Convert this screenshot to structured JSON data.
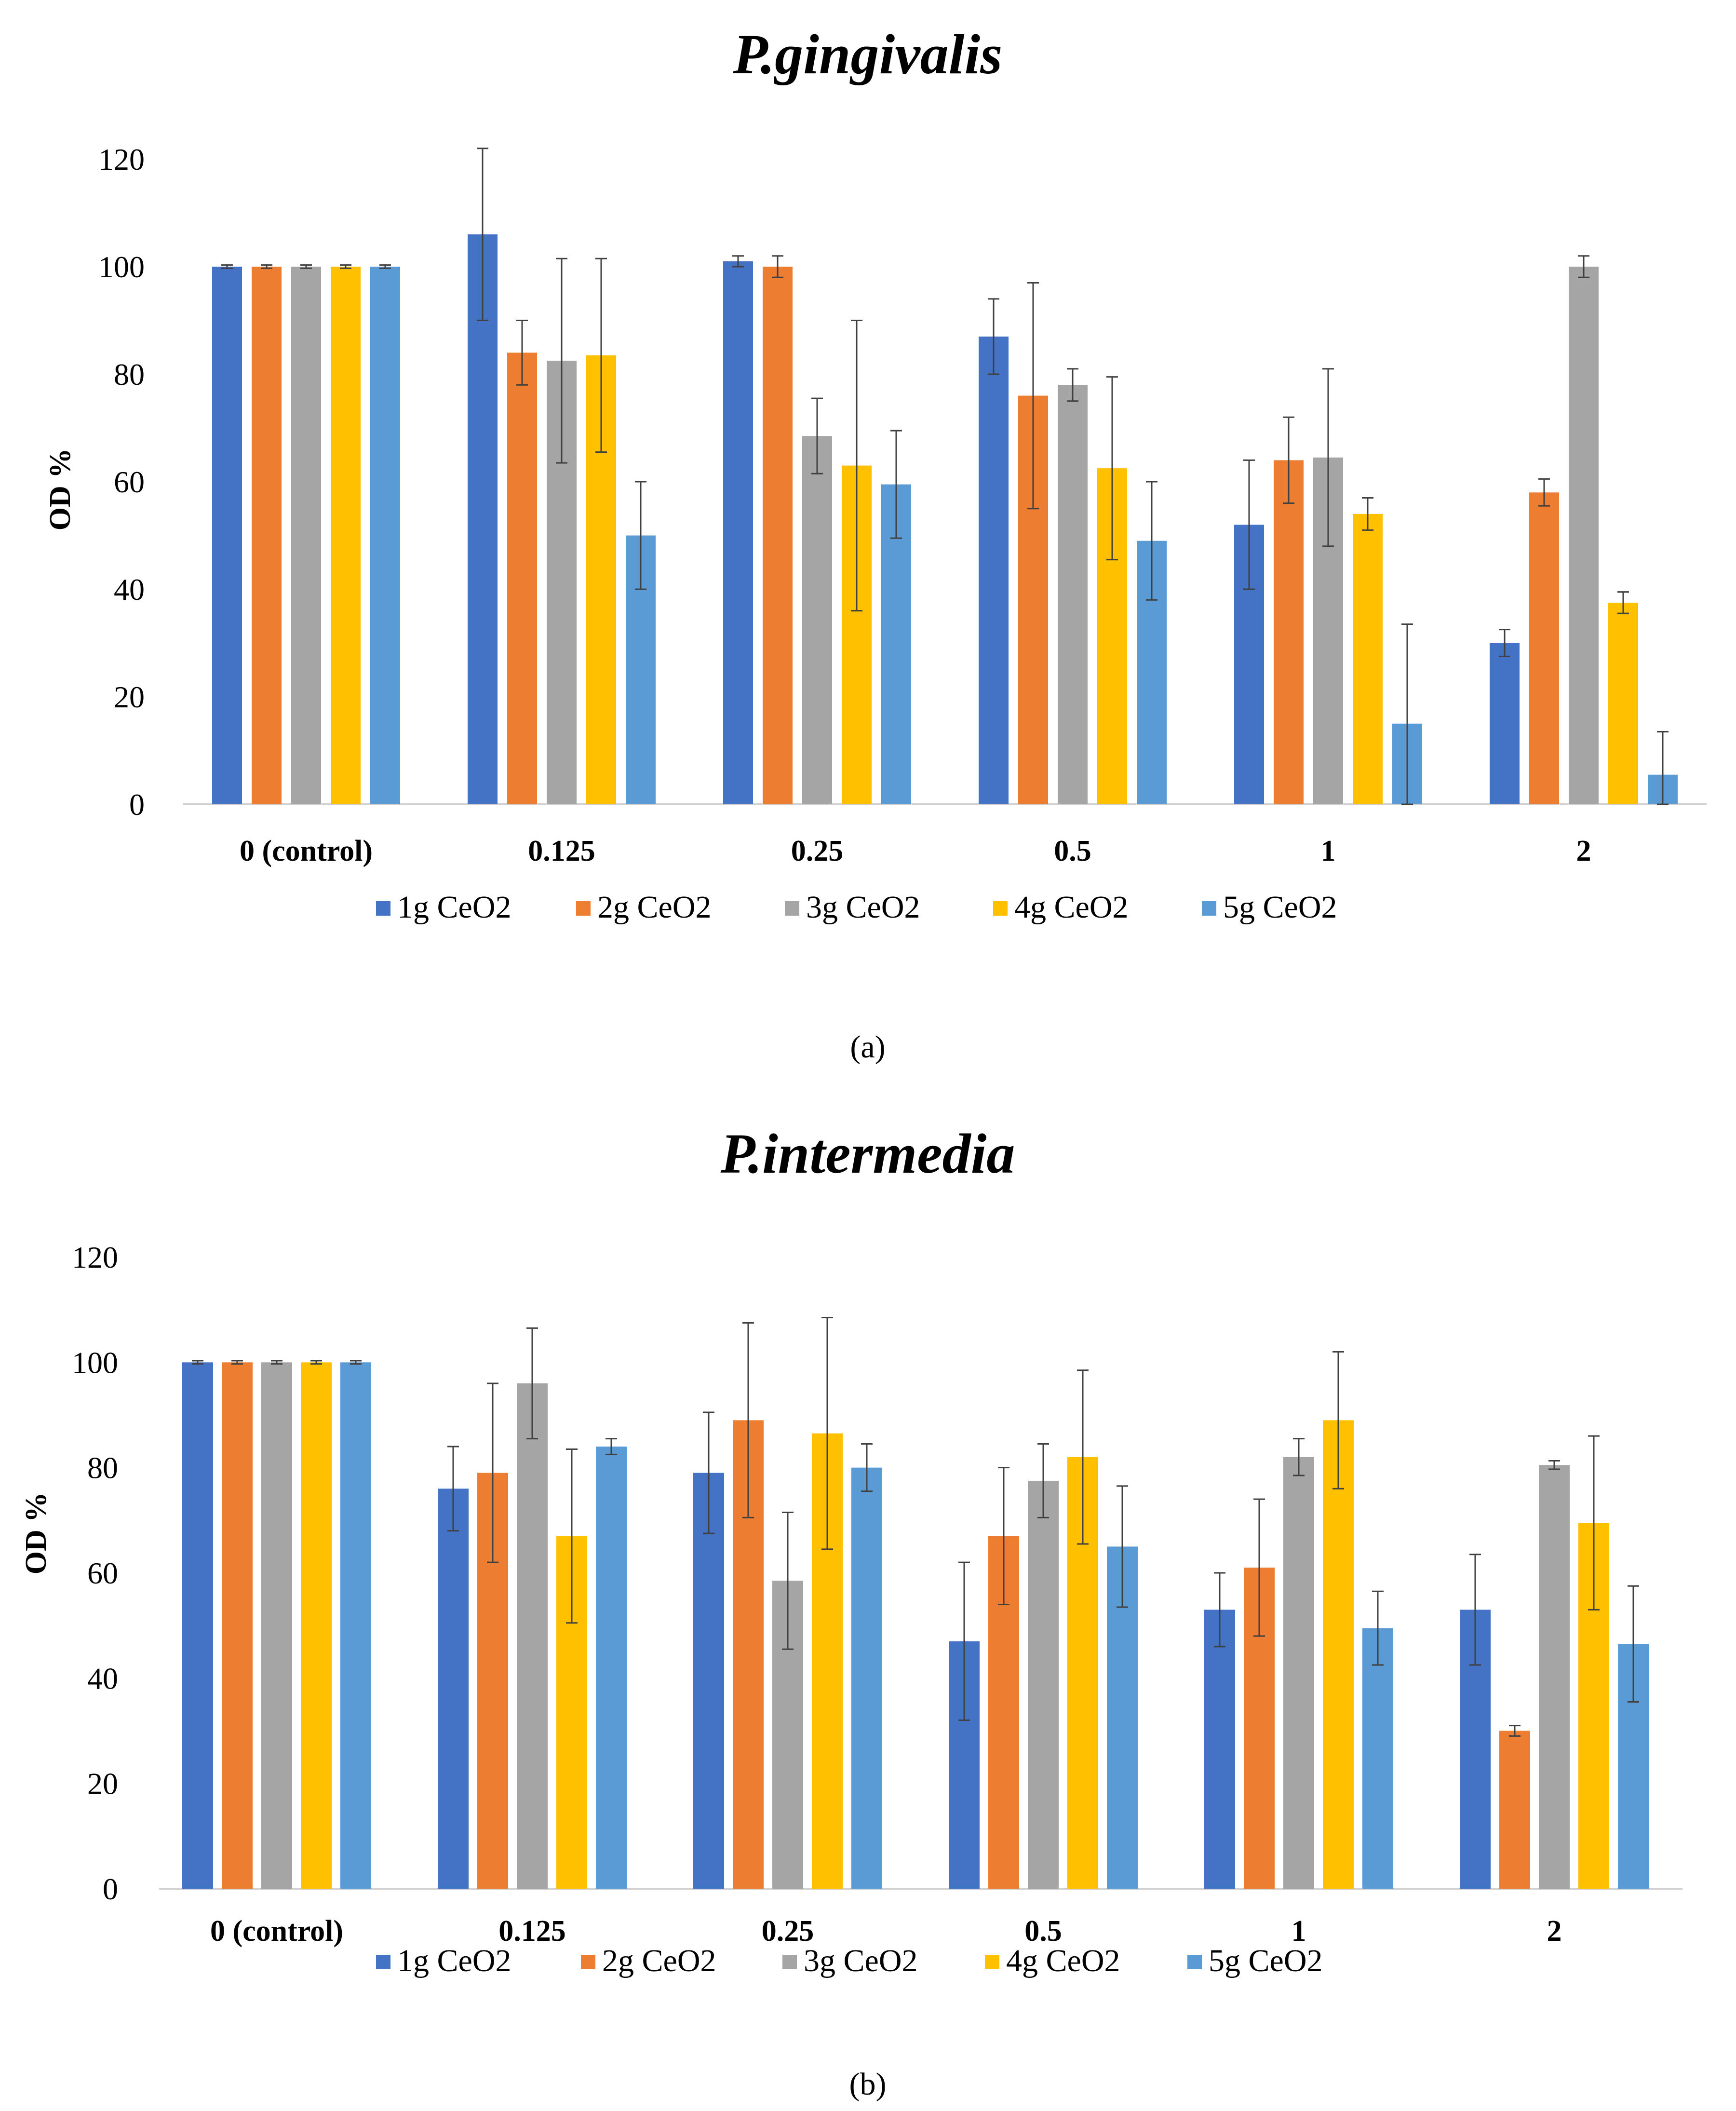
{
  "chart_data": [
    {
      "type": "bar",
      "panel_label": "(a)",
      "title": "P.gingivalis",
      "xlabel": "",
      "ylabel": "OD %",
      "ylim": [
        0,
        120
      ],
      "yticks": [
        "0",
        "20",
        "40",
        "60",
        "80",
        "100",
        "120"
      ],
      "grid": false,
      "legend_position": "bottom",
      "categories": [
        "0 (control)",
        "0.125",
        "0.25",
        "0.5",
        "1",
        "2"
      ],
      "series": [
        {
          "name": "1g CeO2",
          "color": "#4472C4",
          "values": [
            100,
            106,
            101,
            87,
            52,
            30
          ],
          "errors": [
            0.3,
            16,
            1,
            7,
            12,
            2.5
          ]
        },
        {
          "name": "2g CeO2",
          "color": "#ED7D31",
          "values": [
            100,
            84,
            100,
            76,
            64,
            58
          ],
          "errors": [
            0.3,
            6,
            2,
            21,
            8,
            2.5
          ]
        },
        {
          "name": "3g CeO2",
          "color": "#A5A5A5",
          "values": [
            100,
            82.5,
            68.5,
            78,
            64.5,
            100
          ],
          "errors": [
            0.3,
            19,
            7,
            3,
            16.5,
            2
          ]
        },
        {
          "name": "4g CeO2",
          "color": "#FFC000",
          "values": [
            100,
            83.5,
            63,
            62.5,
            54,
            37.5
          ],
          "errors": [
            0.3,
            18,
            27,
            17,
            3,
            2
          ]
        },
        {
          "name": "5g CeO2",
          "color": "#5B9BD5",
          "values": [
            100,
            50,
            59.5,
            49,
            15,
            5.5
          ],
          "errors": [
            0.3,
            10,
            10,
            11,
            18.5,
            8
          ]
        }
      ]
    },
    {
      "type": "bar",
      "panel_label": "(b)",
      "title": "P.intermedia",
      "xlabel": "",
      "ylabel": "OD %",
      "ylim": [
        0,
        120
      ],
      "yticks": [
        "0",
        "20",
        "40",
        "60",
        "80",
        "100",
        "120"
      ],
      "grid": false,
      "legend_position": "bottom",
      "categories": [
        "0 (control)",
        "0.125",
        "0.25",
        "0.5",
        "1",
        "2"
      ],
      "series": [
        {
          "name": "1g CeO2",
          "color": "#4472C4",
          "values": [
            100,
            76,
            79,
            47,
            53,
            53
          ],
          "errors": [
            0.3,
            8,
            11.5,
            15,
            7,
            10.5
          ]
        },
        {
          "name": "2g CeO2",
          "color": "#ED7D31",
          "values": [
            100,
            79,
            89,
            67,
            61,
            30
          ],
          "errors": [
            0.3,
            17,
            18.5,
            13,
            13,
            1
          ]
        },
        {
          "name": "3g CeO2",
          "color": "#A5A5A5",
          "values": [
            100,
            96,
            58.5,
            77.5,
            82,
            80.5
          ],
          "errors": [
            0.3,
            10.5,
            13,
            7,
            3.5,
            0.8
          ]
        },
        {
          "name": "4g CeO2",
          "color": "#FFC000",
          "values": [
            100,
            67,
            86.5,
            82,
            89,
            69.5
          ],
          "errors": [
            0.3,
            16.5,
            22,
            16.5,
            13,
            16.5
          ]
        },
        {
          "name": "5g CeO2",
          "color": "#5B9BD5",
          "values": [
            100,
            84,
            80,
            65,
            49.5,
            46.5
          ],
          "errors": [
            0.3,
            1.5,
            4.5,
            11.5,
            7,
            11
          ]
        }
      ]
    }
  ]
}
